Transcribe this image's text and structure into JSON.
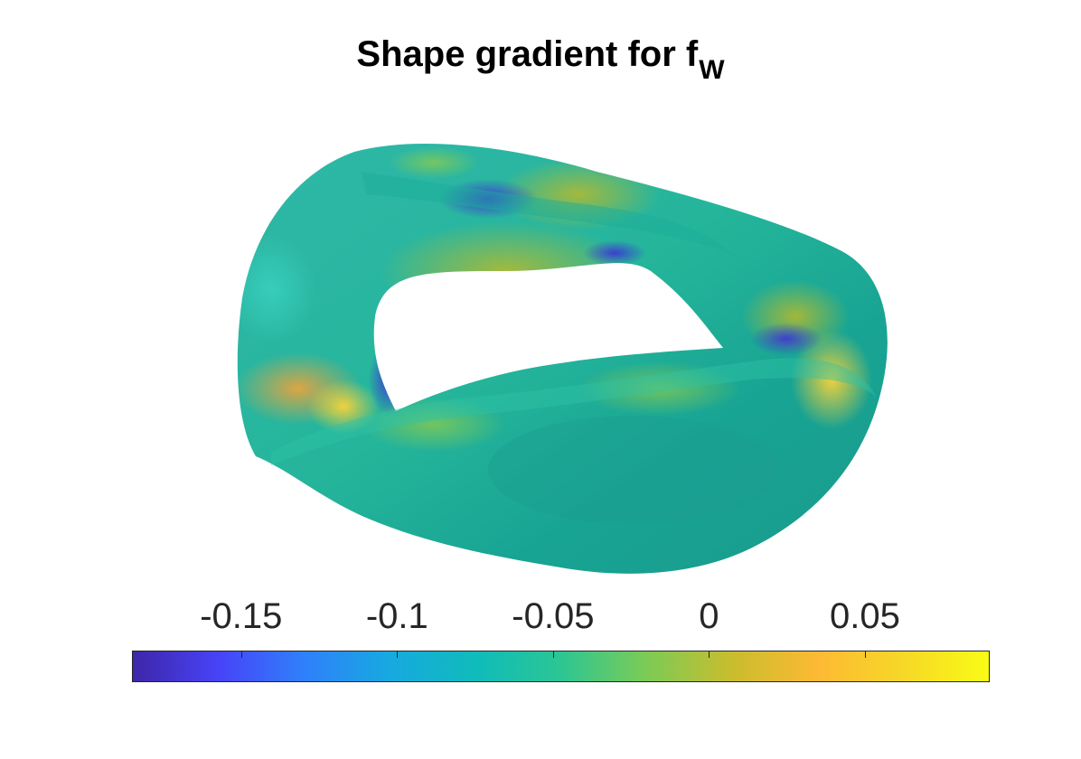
{
  "title": {
    "main": "Shape gradient for f",
    "subscript": "W"
  },
  "colorbar": {
    "range": [
      -0.185,
      0.09
    ],
    "ticks": [
      {
        "value": -0.15,
        "label": "-0.15"
      },
      {
        "value": -0.1,
        "label": "-0.1"
      },
      {
        "value": -0.05,
        "label": "-0.05"
      },
      {
        "value": 0,
        "label": "0"
      },
      {
        "value": 0.05,
        "label": "0.05"
      }
    ],
    "colormap": [
      "#3e26a8",
      "#4743f8",
      "#2f80fb",
      "#17a9e0",
      "#0fbcbb",
      "#2cc693",
      "#7ccb56",
      "#c9bd2d",
      "#fdb934",
      "#f6d827",
      "#f9fb15"
    ]
  }
}
